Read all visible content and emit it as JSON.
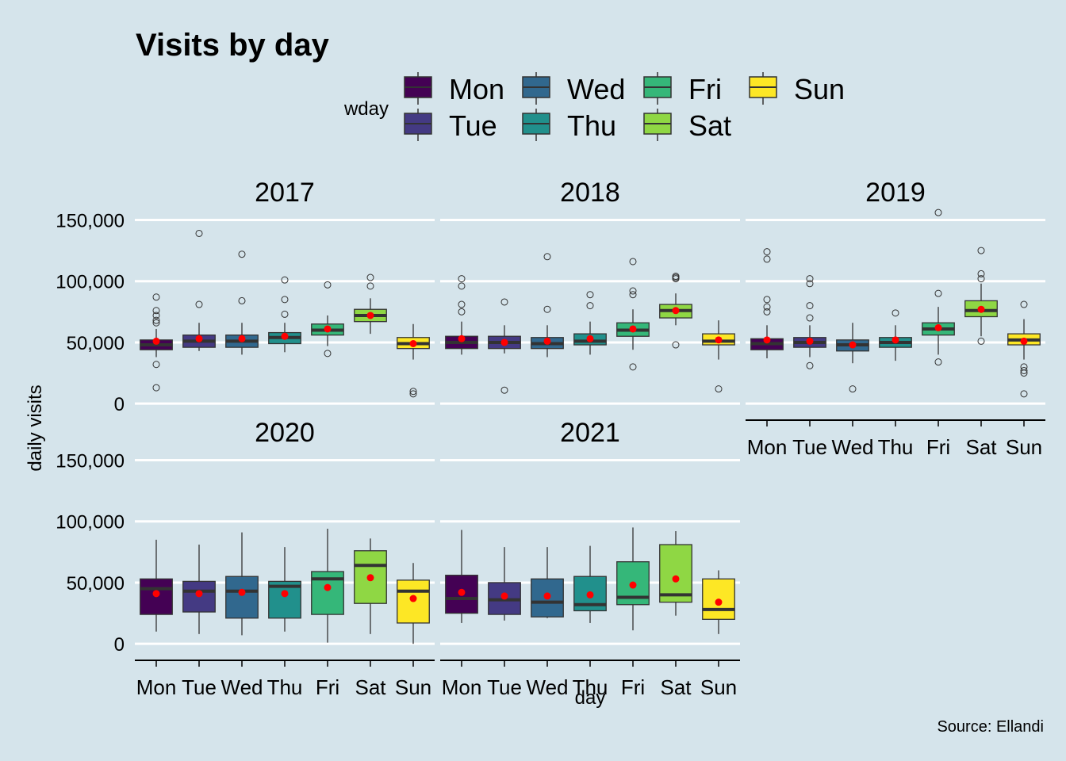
{
  "chart_data": {
    "type": "box",
    "title": "Visits by day",
    "xlabel": "day",
    "ylabel": "daily visits",
    "caption": "Source: Ellandi",
    "legend": {
      "title": "wday",
      "position": "top"
    },
    "categories": [
      "Mon",
      "Tue",
      "Wed",
      "Thu",
      "Fri",
      "Sat",
      "Sun"
    ],
    "colors": [
      "#440154",
      "#443a83",
      "#31688e",
      "#21908c",
      "#35b779",
      "#8fd744",
      "#fde725"
    ],
    "mean_marker_color": "#ff0000",
    "y_ticks": [
      0,
      50000,
      100000,
      150000
    ],
    "y_tick_labels": [
      "0",
      "50,000",
      "100,000",
      "150,000"
    ],
    "ylim": [
      -7000,
      160000
    ],
    "grid": true,
    "panels": [
      {
        "label": "2017",
        "boxes": [
          {
            "day": "Mon",
            "whisker_low": 38000,
            "q1": 44000,
            "median": 48000,
            "q3": 52000,
            "whisker_high": 61000,
            "mean": 51000,
            "outliers": [
              87000,
              76000,
              72000,
              68000,
              66000,
              32000,
              13000
            ]
          },
          {
            "day": "Tue",
            "whisker_low": 43000,
            "q1": 46000,
            "median": 51000,
            "q3": 56000,
            "whisker_high": 66000,
            "mean": 53000,
            "outliers": [
              139000,
              81000
            ]
          },
          {
            "day": "Wed",
            "whisker_low": 40000,
            "q1": 46000,
            "median": 51000,
            "q3": 56000,
            "whisker_high": 66000,
            "mean": 53000,
            "outliers": [
              122000,
              84000
            ]
          },
          {
            "day": "Thu",
            "whisker_low": 42000,
            "q1": 49000,
            "median": 54000,
            "q3": 58000,
            "whisker_high": 66000,
            "mean": 55000,
            "outliers": [
              101000,
              85000,
              73000
            ]
          },
          {
            "day": "Fri",
            "whisker_low": 47000,
            "q1": 56000,
            "median": 60000,
            "q3": 65000,
            "whisker_high": 72000,
            "mean": 61000,
            "outliers": [
              97000,
              41000
            ]
          },
          {
            "day": "Sat",
            "whisker_low": 57000,
            "q1": 67000,
            "median": 72000,
            "q3": 77000,
            "whisker_high": 86000,
            "mean": 72000,
            "outliers": [
              103000,
              96000
            ]
          },
          {
            "day": "Sun",
            "whisker_low": 36000,
            "q1": 45000,
            "median": 49000,
            "q3": 54000,
            "whisker_high": 65000,
            "mean": 49000,
            "outliers": [
              10000,
              8000
            ]
          }
        ]
      },
      {
        "label": "2018",
        "boxes": [
          {
            "day": "Mon",
            "whisker_low": 40000,
            "q1": 45000,
            "median": 50000,
            "q3": 55000,
            "whisker_high": 67000,
            "mean": 53000,
            "outliers": [
              102000,
              96000,
              81000,
              75000
            ]
          },
          {
            "day": "Tue",
            "whisker_low": 41000,
            "q1": 45000,
            "median": 50000,
            "q3": 55000,
            "whisker_high": 64000,
            "mean": 50000,
            "outliers": [
              83000,
              11000
            ]
          },
          {
            "day": "Wed",
            "whisker_low": 38000,
            "q1": 45000,
            "median": 49000,
            "q3": 54000,
            "whisker_high": 64000,
            "mean": 51000,
            "outliers": [
              120000,
              77000
            ]
          },
          {
            "day": "Thu",
            "whisker_low": 40000,
            "q1": 48000,
            "median": 51000,
            "q3": 57000,
            "whisker_high": 67000,
            "mean": 53000,
            "outliers": [
              89000,
              80000
            ]
          },
          {
            "day": "Fri",
            "whisker_low": 44000,
            "q1": 55000,
            "median": 60000,
            "q3": 66000,
            "whisker_high": 77000,
            "mean": 61000,
            "outliers": [
              116000,
              92000,
              89000,
              30000
            ]
          },
          {
            "day": "Sat",
            "whisker_low": 64000,
            "q1": 70000,
            "median": 76000,
            "q3": 81000,
            "whisker_high": 90000,
            "mean": 76000,
            "outliers": [
              104000,
              103000,
              102000,
              48000
            ]
          },
          {
            "day": "Sun",
            "whisker_low": 36000,
            "q1": 48000,
            "median": 51000,
            "q3": 57000,
            "whisker_high": 68000,
            "mean": 52000,
            "outliers": [
              12000
            ]
          }
        ]
      },
      {
        "label": "2019",
        "boxes": [
          {
            "day": "Mon",
            "whisker_low": 37000,
            "q1": 44000,
            "median": 49000,
            "q3": 53000,
            "whisker_high": 64000,
            "mean": 52000,
            "outliers": [
              124000,
              118000,
              85000,
              79000,
              75000
            ]
          },
          {
            "day": "Tue",
            "whisker_low": 38000,
            "q1": 46000,
            "median": 50000,
            "q3": 54000,
            "whisker_high": 64000,
            "mean": 51000,
            "outliers": [
              102000,
              98000,
              80000,
              70000,
              31000
            ]
          },
          {
            "day": "Wed",
            "whisker_low": 33000,
            "q1": 43000,
            "median": 48000,
            "q3": 52000,
            "whisker_high": 66000,
            "mean": 48000,
            "outliers": [
              12000
            ]
          },
          {
            "day": "Thu",
            "whisker_low": 35000,
            "q1": 46000,
            "median": 50000,
            "q3": 54000,
            "whisker_high": 64000,
            "mean": 52000,
            "outliers": [
              74000
            ]
          },
          {
            "day": "Fri",
            "whisker_low": 40000,
            "q1": 56000,
            "median": 61000,
            "q3": 66000,
            "whisker_high": 79000,
            "mean": 62000,
            "outliers": [
              156000,
              90000,
              34000
            ]
          },
          {
            "day": "Sat",
            "whisker_low": 55000,
            "q1": 71000,
            "median": 76000,
            "q3": 84000,
            "whisker_high": 98000,
            "mean": 77000,
            "outliers": [
              125000,
              106000,
              102000,
              51000
            ]
          },
          {
            "day": "Sun",
            "whisker_low": 36000,
            "q1": 48000,
            "median": 52000,
            "q3": 57000,
            "whisker_high": 69000,
            "mean": 51000,
            "outliers": [
              81000,
              30000,
              27000,
              25000,
              8000
            ]
          }
        ]
      },
      {
        "label": "2020",
        "boxes": [
          {
            "day": "Mon",
            "whisker_low": 10000,
            "q1": 24000,
            "median": 45000,
            "q3": 53000,
            "whisker_high": 85000,
            "mean": 41000,
            "outliers": []
          },
          {
            "day": "Tue",
            "whisker_low": 8000,
            "q1": 26000,
            "median": 43000,
            "q3": 51000,
            "whisker_high": 81000,
            "mean": 41000,
            "outliers": []
          },
          {
            "day": "Wed",
            "whisker_low": 7000,
            "q1": 21000,
            "median": 43000,
            "q3": 55000,
            "whisker_high": 91000,
            "mean": 42000,
            "outliers": []
          },
          {
            "day": "Thu",
            "whisker_low": 10000,
            "q1": 21000,
            "median": 47000,
            "q3": 51000,
            "whisker_high": 79000,
            "mean": 41000,
            "outliers": []
          },
          {
            "day": "Fri",
            "whisker_low": 1000,
            "q1": 24000,
            "median": 53000,
            "q3": 59000,
            "whisker_high": 94000,
            "mean": 46000,
            "outliers": []
          },
          {
            "day": "Sat",
            "whisker_low": 8000,
            "q1": 33000,
            "median": 64000,
            "q3": 76000,
            "whisker_high": 86000,
            "mean": 54000,
            "outliers": []
          },
          {
            "day": "Sun",
            "whisker_low": 0,
            "q1": 17000,
            "median": 43000,
            "q3": 52000,
            "whisker_high": 66000,
            "mean": 37000,
            "outliers": []
          }
        ]
      },
      {
        "label": "2021",
        "boxes": [
          {
            "day": "Mon",
            "whisker_low": 17000,
            "q1": 25000,
            "median": 37000,
            "q3": 56000,
            "whisker_high": 93000,
            "mean": 42000,
            "outliers": []
          },
          {
            "day": "Tue",
            "whisker_low": 19000,
            "q1": 24000,
            "median": 36000,
            "q3": 50000,
            "whisker_high": 79000,
            "mean": 39000,
            "outliers": []
          },
          {
            "day": "Wed",
            "whisker_low": 21000,
            "q1": 22000,
            "median": 34000,
            "q3": 53000,
            "whisker_high": 79000,
            "mean": 39000,
            "outliers": []
          },
          {
            "day": "Thu",
            "whisker_low": 17000,
            "q1": 27000,
            "median": 32000,
            "q3": 55000,
            "whisker_high": 80000,
            "mean": 40000,
            "outliers": []
          },
          {
            "day": "Fri",
            "whisker_low": 11000,
            "q1": 32000,
            "median": 38000,
            "q3": 67000,
            "whisker_high": 95000,
            "mean": 48000,
            "outliers": []
          },
          {
            "day": "Sat",
            "whisker_low": 23000,
            "q1": 34000,
            "median": 40000,
            "q3": 81000,
            "whisker_high": 92000,
            "mean": 53000,
            "outliers": []
          },
          {
            "day": "Sun",
            "whisker_low": 8000,
            "q1": 20000,
            "median": 28000,
            "q3": 53000,
            "whisker_high": 60000,
            "mean": 34000,
            "outliers": []
          }
        ]
      }
    ]
  }
}
